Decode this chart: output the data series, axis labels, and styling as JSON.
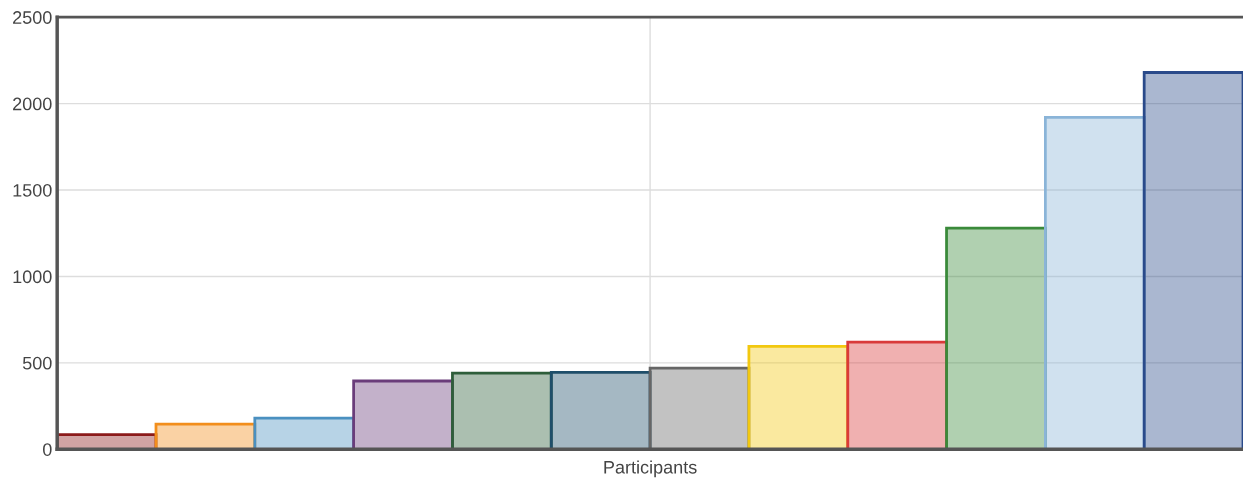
{
  "chart_data": {
    "type": "bar",
    "categories": [
      "Participants"
    ],
    "series": [
      {
        "color": "#8b1a1a",
        "values": [
          85
        ]
      },
      {
        "color": "#f28e1c",
        "values": [
          145
        ]
      },
      {
        "color": "#4a90c0",
        "values": [
          180
        ]
      },
      {
        "color": "#6a3d7a",
        "values": [
          395
        ]
      },
      {
        "color": "#2e5e3a",
        "values": [
          440
        ]
      },
      {
        "color": "#1f4e6a",
        "values": [
          445
        ]
      },
      {
        "color": "#666666",
        "values": [
          470
        ]
      },
      {
        "color": "#f2c80f",
        "values": [
          595
        ]
      },
      {
        "color": "#d93a3a",
        "values": [
          620
        ]
      },
      {
        "color": "#3a8a3a",
        "values": [
          1280
        ]
      },
      {
        "color": "#8ab4d8",
        "values": [
          1920
        ]
      },
      {
        "color": "#2a4a8a",
        "values": [
          2180
        ]
      }
    ],
    "ylim": [
      0,
      2500
    ],
    "yticks": [
      0,
      500,
      1000,
      1500,
      2000,
      2500
    ],
    "grid": true,
    "legend": false
  }
}
